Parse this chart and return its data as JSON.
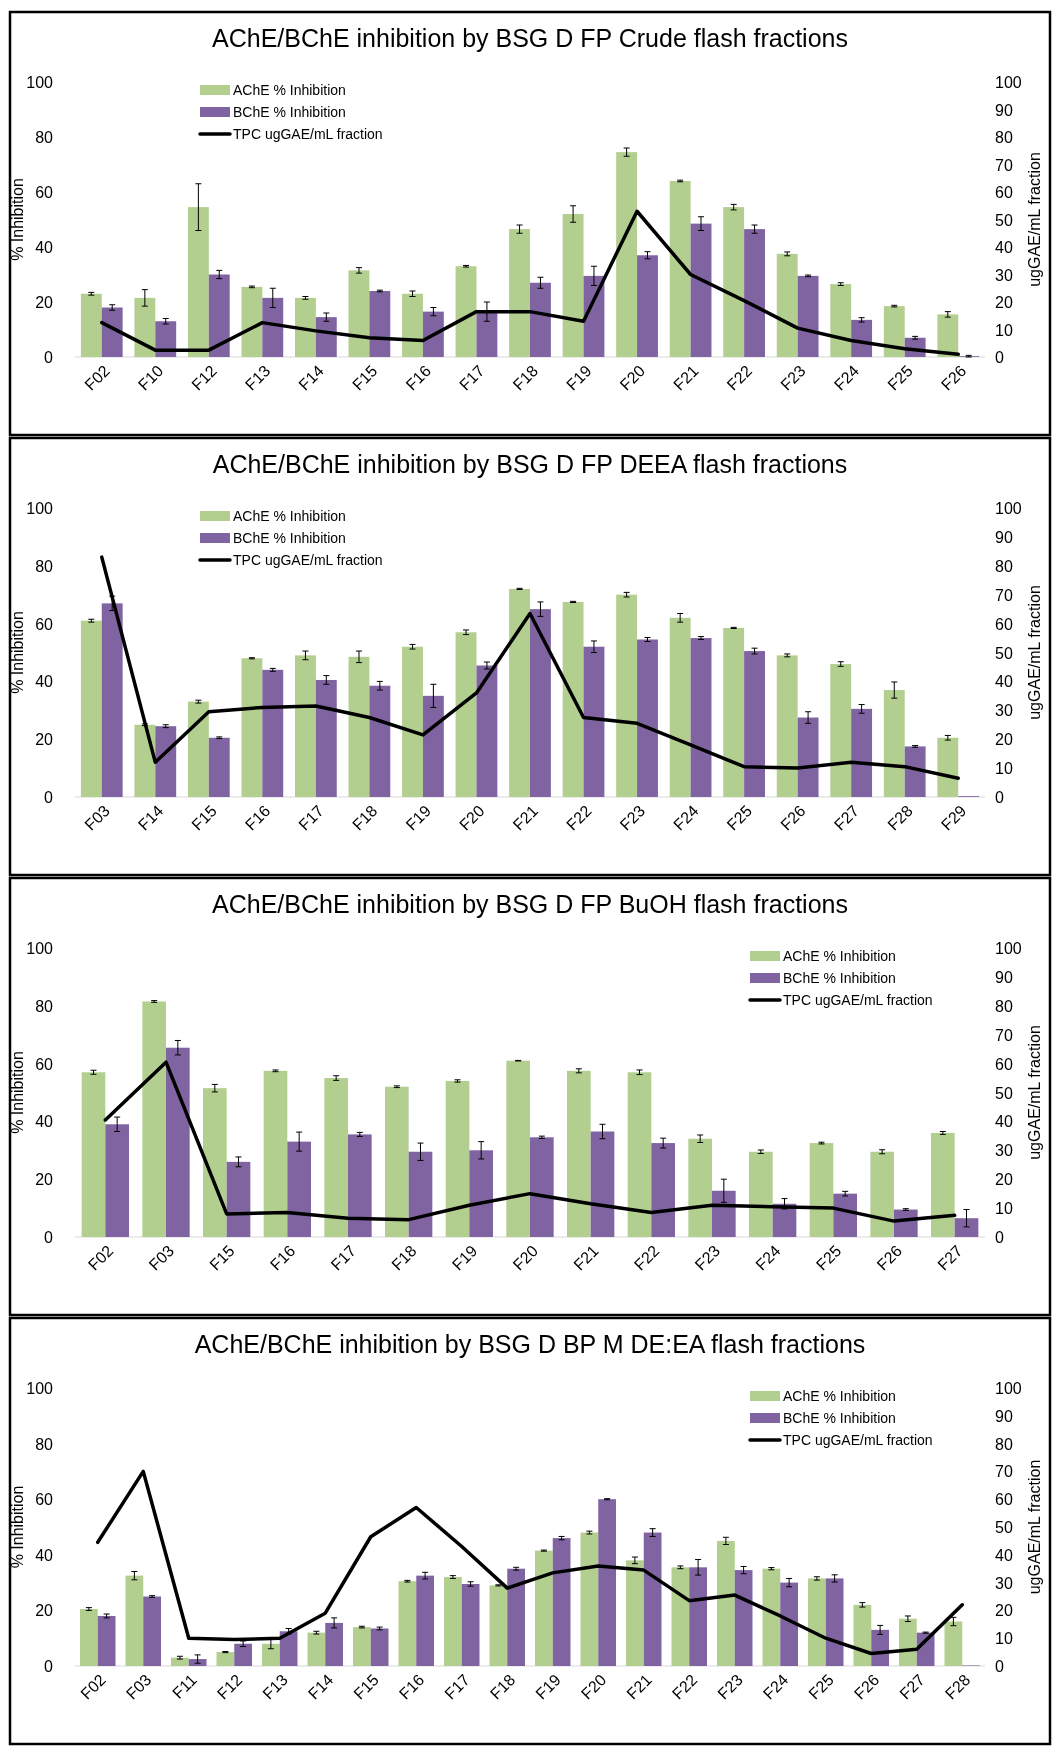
{
  "chart_data": [
    {
      "type": "bar",
      "title": "AChE/BChE inhibition by BSG D FP Crude flash fractions",
      "ylabel": "% Inhibition",
      "y2label": "ugGAE/mL fraction",
      "legend": "top left",
      "categories": [
        "F02",
        "F10",
        "F12",
        "F13",
        "F14",
        "F15",
        "F16",
        "F17",
        "F18",
        "F19",
        "F20",
        "F21",
        "F22",
        "F23",
        "F24",
        "F25",
        "F26"
      ],
      "ylim": [
        0,
        100
      ],
      "yticks": [
        0,
        20,
        40,
        60,
        80,
        100
      ],
      "y2lim": [
        0,
        100
      ],
      "y2ticks": [
        0,
        10,
        20,
        30,
        40,
        50,
        60,
        70,
        80,
        90,
        100
      ],
      "series": [
        {
          "name": "AChE % Inhibition",
          "color": "#b3cf8f",
          "values": [
            23,
            21.5,
            54.5,
            25.5,
            21.5,
            31.5,
            23,
            33,
            46.5,
            52,
            74.5,
            64,
            54.5,
            37.5,
            26.5,
            18.5,
            15.5
          ],
          "errors": [
            0.5,
            3,
            8.5,
            0.3,
            0.5,
            1,
            1,
            0.3,
            1.5,
            3,
            1.5,
            0.3,
            1,
            0.7,
            0.5,
            0.3,
            1
          ]
        },
        {
          "name": "BChE % Inhibition",
          "color": "#8064a2",
          "values": [
            18,
            13,
            30,
            21.5,
            14.5,
            24,
            16.5,
            16.5,
            27,
            29.5,
            37,
            48.5,
            46.5,
            29.5,
            13.5,
            7,
            0.3
          ],
          "errors": [
            1,
            1,
            1.5,
            3.5,
            1.5,
            0.3,
            1.5,
            3.5,
            2,
            3.5,
            1.3,
            2.5,
            1.5,
            0.3,
            0.8,
            0.5,
            0.3
          ]
        },
        {
          "name": "TPC ugGAE/mL fraction",
          "type": "line",
          "axis": "y2",
          "color": "#000000",
          "values": [
            12.5,
            2.5,
            2.5,
            12.5,
            9.5,
            7,
            6,
            16.5,
            16.5,
            13,
            53,
            30,
            20.5,
            10.5,
            6,
            3,
            1
          ]
        }
      ]
    },
    {
      "type": "bar",
      "title": "AChE/BChE inhibition by BSG D FP DEEA flash fractions",
      "ylabel": "% Inhibition",
      "y2label": "ugGAE/mL fraction",
      "legend": "top left",
      "categories": [
        "F03",
        "F14",
        "F15",
        "F16",
        "F17",
        "F18",
        "F19",
        "F20",
        "F21",
        "F22",
        "F23",
        "F24",
        "F25",
        "F26",
        "F27",
        "F28",
        "F29"
      ],
      "ylim": [
        0,
        100
      ],
      "yticks": [
        0,
        20,
        40,
        60,
        80,
        100
      ],
      "y2lim": [
        0,
        100
      ],
      "y2ticks": [
        0,
        10,
        20,
        30,
        40,
        50,
        60,
        70,
        80,
        90,
        100
      ],
      "series": [
        {
          "name": "AChE % Inhibition",
          "color": "#b3cf8f",
          "values": [
            61,
            25,
            33,
            48,
            49,
            48.5,
            52,
            57,
            72,
            67.5,
            70,
            62,
            58.5,
            49,
            46,
            37,
            20.5
          ],
          "errors": [
            0.5,
            0.3,
            0.5,
            0.2,
            1.5,
            2,
            0.8,
            0.8,
            0.2,
            0.2,
            0.8,
            1.5,
            0.2,
            0.5,
            0.8,
            2.8,
            0.8
          ]
        },
        {
          "name": "BChE % Inhibition",
          "color": "#8064a2",
          "values": [
            67,
            24.5,
            20.5,
            44,
            40.5,
            38.5,
            35,
            45.5,
            65,
            52,
            54.5,
            55,
            50.5,
            27.5,
            30.5,
            17.5,
            0.3
          ],
          "errors": [
            2.5,
            0.5,
            0.3,
            0.5,
            1.5,
            1.5,
            4,
            1.2,
            2.5,
            2,
            0.7,
            0.5,
            1,
            2,
            1.5,
            0.3,
            null
          ]
        },
        {
          "name": "TPC ugGAE/mL fraction",
          "type": "line",
          "axis": "y2",
          "color": "#000000",
          "values": [
            83,
            12,
            29.5,
            31,
            31.5,
            27.5,
            21.5,
            36,
            63.5,
            27.5,
            25.5,
            18,
            10.5,
            10,
            12,
            10.5,
            6.5
          ]
        }
      ]
    },
    {
      "type": "bar",
      "title": "AChE/BChE inhibition by BSG D FP BuOH flash fractions",
      "ylabel": "% Inhibition",
      "y2label": "ugGAE/mL fraction",
      "legend": "top right",
      "categories": [
        "F02",
        "F03",
        "F15",
        "F16",
        "F17",
        "F18",
        "F19",
        "F20",
        "F21",
        "F22",
        "F23",
        "F24",
        "F25",
        "F26",
        "F27"
      ],
      "ylim": [
        0,
        100
      ],
      "yticks": [
        0,
        20,
        40,
        60,
        80,
        100
      ],
      "y2lim": [
        0,
        100
      ],
      "y2ticks": [
        0,
        10,
        20,
        30,
        40,
        50,
        60,
        70,
        80,
        90,
        100
      ],
      "series": [
        {
          "name": "AChE % Inhibition",
          "color": "#b3cf8f",
          "values": [
            57,
            81.5,
            51.5,
            57.5,
            55,
            52,
            54,
            61,
            57.5,
            57,
            34,
            29.5,
            32.5,
            29.5,
            36
          ],
          "errors": [
            0.7,
            0.3,
            1.3,
            0.3,
            0.8,
            0.3,
            0.4,
            0.1,
            0.7,
            0.8,
            1.3,
            0.6,
            0.3,
            0.7,
            0.5
          ]
        },
        {
          "name": "BChE % Inhibition",
          "color": "#8064a2",
          "values": [
            39,
            65.5,
            26,
            33,
            35.5,
            29.5,
            30,
            34.5,
            36.5,
            32.5,
            16,
            11.5,
            15,
            9.5,
            6.5
          ],
          "errors": [
            2.5,
            2.5,
            1.7,
            3.3,
            0.7,
            3,
            3,
            0.4,
            2.5,
            1.7,
            4,
            1.8,
            0.8,
            0.3,
            3
          ]
        },
        {
          "name": "TPC ugGAE/mL fraction",
          "type": "line",
          "axis": "y2",
          "color": "#000000",
          "values": [
            40.5,
            60.5,
            8,
            8.5,
            6.5,
            6,
            11,
            15,
            11.5,
            8.5,
            11,
            10.5,
            10,
            5.5,
            7.5
          ]
        }
      ]
    },
    {
      "type": "bar",
      "title": "AChE/BChE inhibition by BSG D BP M DE:EA flash fractions",
      "ylabel": "% Inhibition",
      "y2label": "ugGAE/mL fraction",
      "legend": "top right",
      "categories": [
        "F02",
        "F03",
        "F11",
        "F12",
        "F13",
        "F14",
        "F15",
        "F16",
        "F17",
        "F18",
        "F19",
        "F20",
        "F21",
        "F22",
        "F23",
        "F24",
        "F25",
        "F26",
        "F27",
        "F28"
      ],
      "ylim": [
        0,
        100
      ],
      "yticks": [
        0,
        20,
        40,
        60,
        80,
        100
      ],
      "y2lim": [
        0,
        100
      ],
      "y2ticks": [
        0,
        10,
        20,
        30,
        40,
        50,
        60,
        70,
        80,
        90,
        100
      ],
      "series": [
        {
          "name": "AChE % Inhibition",
          "color": "#b3cf8f",
          "values": [
            20.5,
            32.5,
            3,
            5,
            8,
            12,
            14,
            30.5,
            32,
            29,
            41.5,
            48,
            38,
            35.5,
            45,
            35,
            31.5,
            22,
            17,
            16
          ],
          "errors": [
            0.5,
            1.5,
            0.5,
            0.2,
            1.8,
            0.5,
            0.3,
            0.3,
            0.5,
            0.2,
            0.2,
            0.5,
            1.2,
            0.5,
            1.3,
            0.4,
            0.6,
            0.8,
            1,
            1.5
          ]
        },
        {
          "name": "BChE % Inhibition",
          "color": "#8064a2",
          "values": [
            18,
            25,
            2.5,
            8,
            12.5,
            15.5,
            13.5,
            32.5,
            29.5,
            35,
            46,
            60,
            48,
            35.5,
            34.5,
            30,
            31.5,
            13,
            12,
            0.2
          ],
          "errors": [
            0.7,
            0.3,
            1.5,
            1,
            1,
            1.8,
            0.5,
            1.2,
            0.8,
            0.5,
            0.6,
            0.2,
            1.4,
            2.8,
            1.3,
            1.5,
            1.3,
            1.6,
            0.2,
            null
          ]
        },
        {
          "name": "TPC ugGAE/mL fraction",
          "type": "line",
          "axis": "y2",
          "color": "#000000",
          "values": [
            44.5,
            70,
            10,
            9.5,
            10,
            19,
            46.5,
            57,
            43,
            28,
            33.5,
            36,
            34.5,
            23.5,
            25.5,
            18,
            10,
            4.5,
            6,
            22
          ]
        }
      ]
    }
  ]
}
